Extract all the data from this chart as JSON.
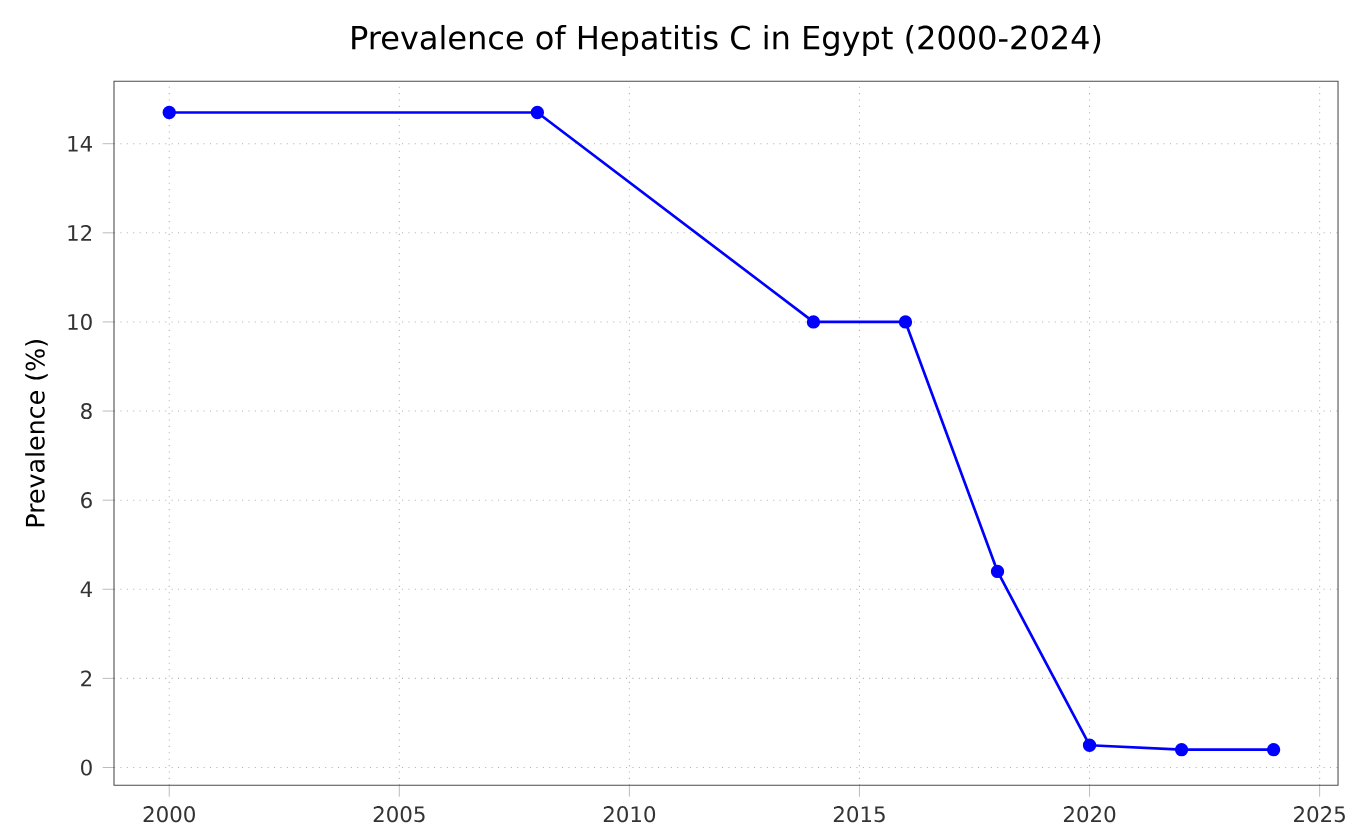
{
  "chart_data": {
    "type": "line",
    "title": "Prevalence of Hepatitis C in Egypt (2000-2024)",
    "ylabel": "Prevalence (%)",
    "x": [
      2000,
      2008,
      2014,
      2016,
      2018,
      2020,
      2022,
      2024
    ],
    "series": [
      {
        "color": "#0000ff",
        "values": [
          14.7,
          14.7,
          10.0,
          10.0,
          4.4,
          0.5,
          0.4,
          0.4
        ]
      }
    ],
    "xlim": [
      1998.8,
      2025.4
    ],
    "ylim": [
      -0.4,
      15.4
    ],
    "xticks": [
      2000,
      2005,
      2010,
      2015,
      2020,
      2025
    ],
    "yticks": [
      0,
      2,
      4,
      6,
      8,
      10,
      12,
      14
    ],
    "grid": true,
    "marker": "circle",
    "line_style": "solid"
  }
}
